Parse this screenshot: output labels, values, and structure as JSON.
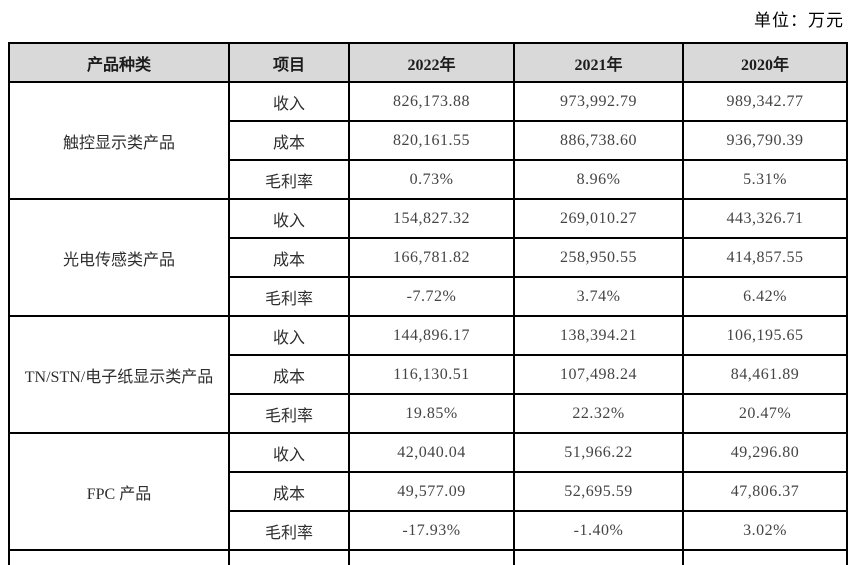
{
  "page": {
    "unit_label": "单位：万元"
  },
  "table": {
    "headers": [
      "产品种类",
      "项目",
      "2022年",
      "2021年",
      "2020年"
    ],
    "groups": [
      {
        "category": "触控显示类产品",
        "rows": [
          {
            "item": "收入",
            "y2022": "826,173.88",
            "y2021": "973,992.79",
            "y2020": "989,342.77"
          },
          {
            "item": "成本",
            "y2022": "820,161.55",
            "y2021": "886,738.60",
            "y2020": "936,790.39"
          },
          {
            "item": "毛利率",
            "y2022": "0.73%",
            "y2021": "8.96%",
            "y2020": "5.31%"
          }
        ]
      },
      {
        "category": "光电传感类产品",
        "rows": [
          {
            "item": "收入",
            "y2022": "154,827.32",
            "y2021": "269,010.27",
            "y2020": "443,326.71"
          },
          {
            "item": "成本",
            "y2022": "166,781.82",
            "y2021": "258,950.55",
            "y2020": "414,857.55"
          },
          {
            "item": "毛利率",
            "y2022": "-7.72%",
            "y2021": "3.74%",
            "y2020": "6.42%"
          }
        ]
      },
      {
        "category": "TN/STN/电子纸显示类产品",
        "rows": [
          {
            "item": "收入",
            "y2022": "144,896.17",
            "y2021": "138,394.21",
            "y2020": "106,195.65"
          },
          {
            "item": "成本",
            "y2022": "116,130.51",
            "y2021": "107,498.24",
            "y2020": "84,461.89"
          },
          {
            "item": "毛利率",
            "y2022": "19.85%",
            "y2021": "22.32%",
            "y2020": "20.47%"
          }
        ]
      },
      {
        "category": "FPC 产品",
        "rows": [
          {
            "item": "收入",
            "y2022": "42,040.04",
            "y2021": "51,966.22",
            "y2020": "49,296.80"
          },
          {
            "item": "成本",
            "y2022": "49,577.09",
            "y2021": "52,695.59",
            "y2020": "47,806.37"
          },
          {
            "item": "毛利率",
            "y2022": "-17.93%",
            "y2021": "-1.40%",
            "y2020": "3.02%"
          }
        ]
      }
    ]
  }
}
